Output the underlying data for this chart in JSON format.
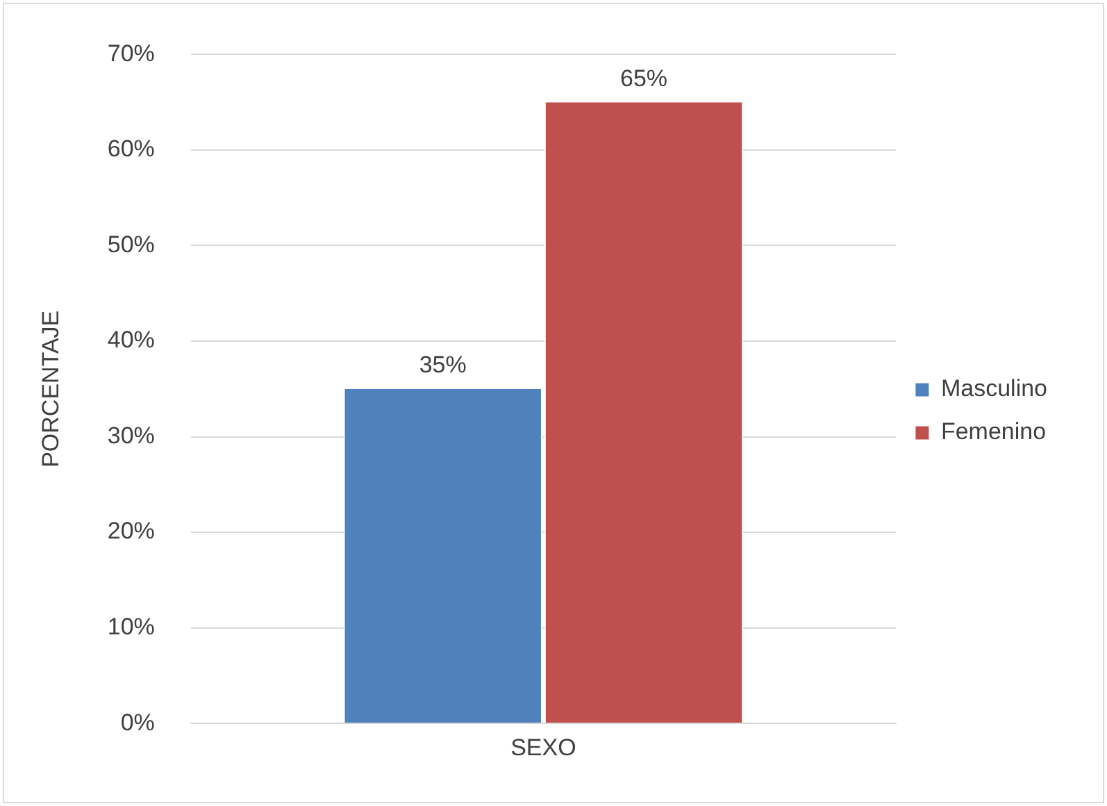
{
  "chart_data": {
    "type": "bar",
    "ylabel": "PORCENTAJE",
    "categories": [
      "SEXO"
    ],
    "series": [
      {
        "name": "Masculino",
        "color": "#4f81bd",
        "values": [
          35
        ],
        "value_labels": [
          "35%"
        ]
      },
      {
        "name": "Femenino",
        "color": "#c0504d",
        "values": [
          65
        ],
        "value_labels": [
          "65%"
        ]
      }
    ],
    "ylim": [
      0,
      70
    ],
    "yticks": [
      {
        "value": 0,
        "label": "0%"
      },
      {
        "value": 10,
        "label": "10%"
      },
      {
        "value": 20,
        "label": "20%"
      },
      {
        "value": 30,
        "label": "30%"
      },
      {
        "value": 40,
        "label": "40%"
      },
      {
        "value": 50,
        "label": "50%"
      },
      {
        "value": 60,
        "label": "60%"
      },
      {
        "value": 70,
        "label": "70%"
      }
    ],
    "grid": "y",
    "legend": "right"
  }
}
